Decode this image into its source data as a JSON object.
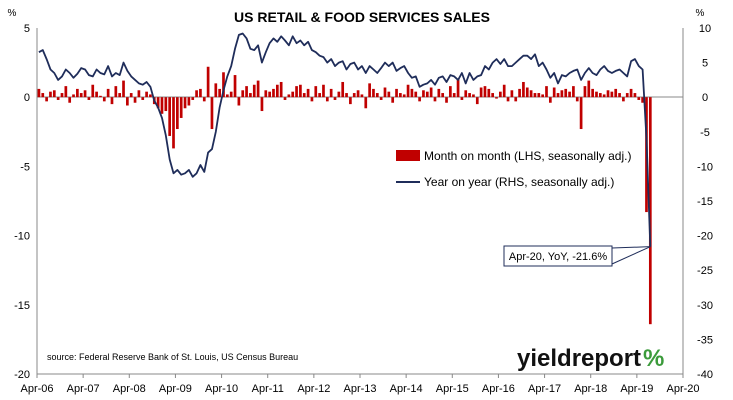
{
  "chart_data": {
    "type": "bar+line",
    "title": "US RETAIL & FOOD SERVICES SALES",
    "left_unit": "%",
    "right_unit": "%",
    "left_ylim": [
      -20,
      5
    ],
    "right_ylim": [
      -40,
      10
    ],
    "left_ticks": [
      "5",
      "0",
      "-5",
      "-10",
      "-15",
      "-20"
    ],
    "right_ticks": [
      "10",
      "5",
      "0",
      "-5",
      "-10",
      "-15",
      "-20",
      "-25",
      "-30",
      "-35",
      "-40"
    ],
    "x_start": "Apr-06",
    "x_end": "Apr-20",
    "x_ticks": [
      "Apr-06",
      "Apr-07",
      "Apr-08",
      "Apr-09",
      "Apr-10",
      "Apr-11",
      "Apr-12",
      "Apr-13",
      "Apr-14",
      "Apr-15",
      "Apr-16",
      "Apr-17",
      "Apr-18",
      "Apr-19",
      "Apr-20"
    ],
    "legend": [
      {
        "name": "Month on month (LHS, seasonally adj.)",
        "color": "#c00000",
        "kind": "bar"
      },
      {
        "name": "Year on year (RHS, seasonally adj.)",
        "color": "#1f2d5a",
        "kind": "line"
      }
    ],
    "callout": "Apr-20, YoY,  -21.6%",
    "source": "source: Federal Reserve Bank of St. Louis, US Census Bureau",
    "mom_anchors": [
      [
        0,
        0.6
      ],
      [
        1,
        0.3
      ],
      [
        2,
        -0.3
      ],
      [
        3,
        0.4
      ],
      [
        4,
        0.5
      ],
      [
        5,
        -0.2
      ],
      [
        6,
        0.3
      ],
      [
        7,
        0.8
      ],
      [
        8,
        -0.4
      ],
      [
        9,
        0.2
      ],
      [
        10,
        0.6
      ],
      [
        11,
        0.3
      ],
      [
        12,
        0.5
      ],
      [
        13,
        -0.2
      ],
      [
        14,
        0.9
      ],
      [
        15,
        0.4
      ],
      [
        16,
        0.1
      ],
      [
        17,
        -0.3
      ],
      [
        18,
        0.6
      ],
      [
        19,
        -0.5
      ],
      [
        20,
        0.8
      ],
      [
        21,
        0.3
      ],
      [
        22,
        1.2
      ],
      [
        23,
        -0.6
      ],
      [
        24,
        0.3
      ],
      [
        25,
        -0.4
      ],
      [
        26,
        0.5
      ],
      [
        27,
        -0.2
      ],
      [
        28,
        0.4
      ],
      [
        29,
        0.2
      ],
      [
        30,
        -0.5
      ],
      [
        31,
        -0.8
      ],
      [
        32,
        -1.2
      ],
      [
        33,
        -1.0
      ],
      [
        34,
        -2.8
      ],
      [
        35,
        -3.7
      ],
      [
        36,
        -2.3
      ],
      [
        37,
        -1.5
      ],
      [
        38,
        -0.8
      ],
      [
        39,
        -0.6
      ],
      [
        40,
        -0.2
      ],
      [
        41,
        0.5
      ],
      [
        42,
        0.6
      ],
      [
        43,
        -0.3
      ],
      [
        44,
        2.2
      ],
      [
        45,
        -2.3
      ],
      [
        46,
        1.0
      ],
      [
        47,
        0.6
      ],
      [
        48,
        1.8
      ],
      [
        49,
        0.2
      ],
      [
        50,
        0.4
      ],
      [
        51,
        1.6
      ],
      [
        52,
        -0.6
      ],
      [
        53,
        0.5
      ],
      [
        54,
        0.8
      ],
      [
        55,
        0.3
      ],
      [
        56,
        0.9
      ],
      [
        57,
        1.2
      ],
      [
        58,
        -1.0
      ],
      [
        59,
        0.5
      ],
      [
        60,
        0.4
      ],
      [
        61,
        0.6
      ],
      [
        62,
        0.9
      ],
      [
        63,
        1.1
      ],
      [
        64,
        -0.2
      ],
      [
        65,
        0.2
      ],
      [
        66,
        0.4
      ],
      [
        67,
        0.8
      ],
      [
        68,
        0.9
      ],
      [
        69,
        0.3
      ],
      [
        70,
        0.6
      ],
      [
        71,
        -0.3
      ],
      [
        72,
        0.8
      ],
      [
        73,
        0.3
      ],
      [
        74,
        0.9
      ],
      [
        75,
        -0.3
      ],
      [
        76,
        0.6
      ],
      [
        77,
        -0.2
      ],
      [
        78,
        0.4
      ],
      [
        79,
        1.1
      ],
      [
        80,
        0.3
      ],
      [
        81,
        -0.5
      ],
      [
        82,
        0.3
      ],
      [
        83,
        0.5
      ],
      [
        84,
        0.2
      ],
      [
        85,
        -0.8
      ],
      [
        86,
        1.0
      ],
      [
        87,
        0.6
      ],
      [
        88,
        0.3
      ],
      [
        89,
        -0.2
      ],
      [
        90,
        0.7
      ],
      [
        91,
        0.4
      ],
      [
        92,
        -0.4
      ],
      [
        93,
        0.6
      ],
      [
        94,
        0.3
      ],
      [
        95,
        0.2
      ],
      [
        96,
        0.9
      ],
      [
        97,
        0.6
      ],
      [
        98,
        0.4
      ],
      [
        99,
        -0.3
      ],
      [
        100,
        0.5
      ],
      [
        101,
        0.4
      ],
      [
        102,
        0.7
      ],
      [
        103,
        -0.3
      ],
      [
        104,
        0.6
      ],
      [
        105,
        0.3
      ],
      [
        106,
        -0.4
      ],
      [
        107,
        0.8
      ],
      [
        108,
        0.3
      ],
      [
        109,
        1.3
      ],
      [
        110,
        -0.2
      ],
      [
        111,
        0.5
      ],
      [
        112,
        0.3
      ],
      [
        113,
        0.2
      ],
      [
        114,
        -0.5
      ],
      [
        115,
        0.7
      ],
      [
        116,
        0.8
      ],
      [
        117,
        0.6
      ],
      [
        118,
        0.3
      ],
      [
        119,
        -0.1
      ],
      [
        120,
        0.4
      ],
      [
        121,
        0.9
      ],
      [
        122,
        -0.3
      ],
      [
        123,
        0.5
      ],
      [
        124,
        -0.3
      ],
      [
        125,
        0.6
      ],
      [
        126,
        1.1
      ],
      [
        127,
        0.7
      ],
      [
        128,
        0.5
      ],
      [
        129,
        0.3
      ],
      [
        130,
        0.3
      ],
      [
        131,
        0.2
      ],
      [
        132,
        0.8
      ],
      [
        133,
        -0.4
      ],
      [
        134,
        0.7
      ],
      [
        135,
        0.3
      ],
      [
        136,
        0.5
      ],
      [
        137,
        0.6
      ],
      [
        138,
        0.4
      ],
      [
        139,
        0.8
      ],
      [
        140,
        -0.3
      ],
      [
        141,
        -2.3
      ],
      [
        142,
        0.8
      ],
      [
        143,
        1.2
      ],
      [
        144,
        0.6
      ],
      [
        145,
        0.4
      ],
      [
        146,
        0.3
      ],
      [
        147,
        0.2
      ],
      [
        148,
        0.5
      ],
      [
        149,
        0.4
      ],
      [
        150,
        0.6
      ],
      [
        151,
        0.3
      ],
      [
        152,
        -0.3
      ],
      [
        153,
        0.3
      ],
      [
        154,
        0.6
      ],
      [
        155,
        0.3
      ],
      [
        156,
        -0.2
      ],
      [
        157,
        -0.4
      ],
      [
        158,
        -8.3
      ],
      [
        159,
        -16.4
      ]
    ],
    "yoy_anchors": [
      [
        0,
        6.5
      ],
      [
        1,
        6.8
      ],
      [
        2,
        5.5
      ],
      [
        3,
        4.0
      ],
      [
        4,
        3.5
      ],
      [
        5,
        2.5
      ],
      [
        6,
        3.0
      ],
      [
        7,
        4.0
      ],
      [
        8,
        3.5
      ],
      [
        9,
        2.8
      ],
      [
        10,
        3.4
      ],
      [
        11,
        4.2
      ],
      [
        12,
        4.0
      ],
      [
        13,
        3.2
      ],
      [
        14,
        3.0
      ],
      [
        15,
        4.0
      ],
      [
        16,
        3.5
      ],
      [
        17,
        3.3
      ],
      [
        18,
        4.5
      ],
      [
        19,
        3.0
      ],
      [
        20,
        3.5
      ],
      [
        21,
        3.2
      ],
      [
        22,
        5.0
      ],
      [
        23,
        3.8
      ],
      [
        24,
        3.0
      ],
      [
        25,
        2.5
      ],
      [
        26,
        2.0
      ],
      [
        27,
        1.8
      ],
      [
        28,
        2.2
      ],
      [
        29,
        1.5
      ],
      [
        30,
        -0.5
      ],
      [
        31,
        -1.5
      ],
      [
        32,
        -3.0
      ],
      [
        33,
        -5.5
      ],
      [
        34,
        -9.0
      ],
      [
        35,
        -11.0
      ],
      [
        36,
        -10.5
      ],
      [
        37,
        -11.2
      ],
      [
        38,
        -11.0
      ],
      [
        39,
        -10.5
      ],
      [
        40,
        -11.5
      ],
      [
        41,
        -11.0
      ],
      [
        42,
        -9.8
      ],
      [
        43,
        -10.8
      ],
      [
        44,
        -8.0
      ],
      [
        45,
        -7.5
      ],
      [
        46,
        -5.0
      ],
      [
        47,
        -1.5
      ],
      [
        48,
        1.0
      ],
      [
        49,
        3.0
      ],
      [
        50,
        4.5
      ],
      [
        51,
        7.0
      ],
      [
        52,
        9.0
      ],
      [
        53,
        9.2
      ],
      [
        54,
        8.5
      ],
      [
        55,
        7.0
      ],
      [
        56,
        6.8
      ],
      [
        57,
        7.5
      ],
      [
        58,
        5.0
      ],
      [
        59,
        6.5
      ],
      [
        60,
        7.8
      ],
      [
        61,
        8.5
      ],
      [
        62,
        8.0
      ],
      [
        63,
        8.8
      ],
      [
        64,
        8.2
      ],
      [
        65,
        7.5
      ],
      [
        66,
        8.8
      ],
      [
        67,
        7.8
      ],
      [
        68,
        8.2
      ],
      [
        69,
        7.5
      ],
      [
        70,
        8.0
      ],
      [
        71,
        6.8
      ],
      [
        72,
        6.5
      ],
      [
        73,
        6.0
      ],
      [
        74,
        5.8
      ],
      [
        75,
        5.0
      ],
      [
        76,
        5.5
      ],
      [
        77,
        4.5
      ],
      [
        78,
        5.0
      ],
      [
        79,
        5.2
      ],
      [
        80,
        4.0
      ],
      [
        81,
        4.8
      ],
      [
        82,
        5.0
      ],
      [
        83,
        4.0
      ],
      [
        84,
        4.5
      ],
      [
        85,
        3.5
      ],
      [
        86,
        4.5
      ],
      [
        87,
        4.0
      ],
      [
        88,
        3.5
      ],
      [
        89,
        4.2
      ],
      [
        90,
        5.0
      ],
      [
        91,
        4.5
      ],
      [
        92,
        5.0
      ],
      [
        93,
        3.8
      ],
      [
        94,
        4.2
      ],
      [
        95,
        4.5
      ],
      [
        96,
        3.5
      ],
      [
        97,
        2.8
      ],
      [
        98,
        3.0
      ],
      [
        99,
        1.5
      ],
      [
        100,
        1.8
      ],
      [
        101,
        2.0
      ],
      [
        102,
        2.5
      ],
      [
        103,
        1.8
      ],
      [
        104,
        2.8
      ],
      [
        105,
        3.0
      ],
      [
        106,
        2.2
      ],
      [
        107,
        3.2
      ],
      [
        108,
        3.0
      ],
      [
        109,
        2.5
      ],
      [
        110,
        3.5
      ],
      [
        111,
        2.0
      ],
      [
        112,
        3.5
      ],
      [
        113,
        2.5
      ],
      [
        114,
        3.0
      ],
      [
        115,
        3.2
      ],
      [
        116,
        4.5
      ],
      [
        117,
        4.0
      ],
      [
        118,
        5.0
      ],
      [
        119,
        5.5
      ],
      [
        120,
        4.8
      ],
      [
        121,
        5.5
      ],
      [
        122,
        4.5
      ],
      [
        123,
        4.5
      ],
      [
        124,
        5.0
      ],
      [
        125,
        5.5
      ],
      [
        126,
        6.0
      ],
      [
        127,
        6.0
      ],
      [
        128,
        5.5
      ],
      [
        129,
        6.2
      ],
      [
        130,
        4.5
      ],
      [
        131,
        5.0
      ],
      [
        132,
        4.0
      ],
      [
        133,
        2.8
      ],
      [
        134,
        3.5
      ],
      [
        135,
        2.0
      ],
      [
        136,
        3.2
      ],
      [
        137,
        3.0
      ],
      [
        138,
        3.5
      ],
      [
        139,
        3.8
      ],
      [
        140,
        4.0
      ],
      [
        141,
        2.5
      ],
      [
        142,
        3.5
      ],
      [
        143,
        4.2
      ],
      [
        144,
        3.5
      ],
      [
        145,
        3.2
      ],
      [
        146,
        4.0
      ],
      [
        147,
        4.5
      ],
      [
        148,
        3.8
      ],
      [
        149,
        3.5
      ],
      [
        150,
        3.8
      ],
      [
        151,
        4.0
      ],
      [
        152,
        3.5
      ],
      [
        153,
        3.0
      ],
      [
        154,
        5.2
      ],
      [
        155,
        5.5
      ],
      [
        156,
        4.5
      ],
      [
        157,
        4.0
      ],
      [
        158,
        -6.0
      ],
      [
        159,
        -21.6
      ]
    ]
  }
}
